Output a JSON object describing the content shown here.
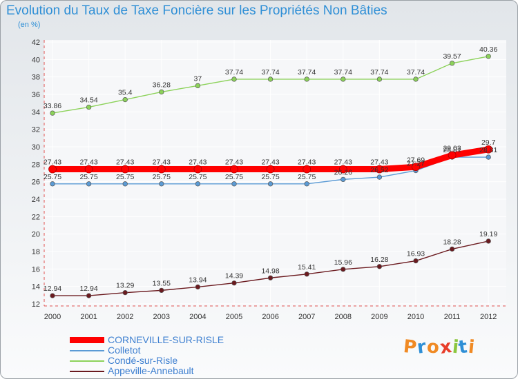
{
  "chart_data": {
    "type": "line",
    "title": "Evolution du Taux de Taxe Foncière sur les Propriétés Non Bâties",
    "subtitle": "(en %)",
    "x": [
      "2000",
      "2001",
      "2002",
      "2003",
      "2004",
      "2005",
      "2006",
      "2007",
      "2008",
      "2009",
      "2010",
      "2011",
      "2012"
    ],
    "ylim": [
      12,
      42
    ],
    "yticks": [
      12,
      14,
      16,
      18,
      20,
      22,
      24,
      26,
      28,
      30,
      32,
      34,
      36,
      38,
      40,
      42
    ],
    "grid": true,
    "legend_position": "bottom-left",
    "series": [
      {
        "name": "CORNEVILLE-SUR-RISLE",
        "color": "#ff0000",
        "thick": true,
        "values": [
          27.43,
          27.43,
          27.43,
          27.43,
          27.43,
          27.43,
          27.43,
          27.43,
          27.43,
          27.43,
          27.69,
          29.03,
          29.7
        ]
      },
      {
        "name": "Colletot",
        "color": "#5b9bd5",
        "values": [
          25.75,
          25.75,
          25.75,
          25.75,
          25.75,
          25.75,
          25.75,
          25.75,
          26.26,
          26.52,
          27.27,
          28.81,
          28.81
        ]
      },
      {
        "name": "Condé-sur-Risle",
        "color": "#8cd25a",
        "values": [
          33.86,
          34.54,
          35.4,
          36.28,
          37,
          37.74,
          37.74,
          37.74,
          37.74,
          37.74,
          37.74,
          39.57,
          40.36
        ]
      },
      {
        "name": "Appeville-Annebault",
        "color": "#6b1a1f",
        "values": [
          12.94,
          12.94,
          13.29,
          13.55,
          13.94,
          14.39,
          14.98,
          15.41,
          15.96,
          16.28,
          16.93,
          18.28,
          19.19
        ]
      }
    ]
  },
  "logo": {
    "letters": [
      "P",
      "r",
      "o",
      "x",
      "i",
      "t",
      "i"
    ],
    "colors": [
      "#f08a24",
      "#2e8fd6",
      "#f08a24",
      "#e83e2a",
      "#8cc63f",
      "#2e8fd6",
      "#f08a24"
    ]
  }
}
